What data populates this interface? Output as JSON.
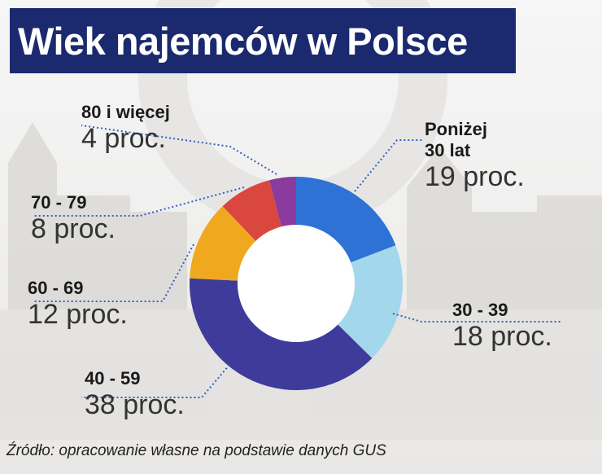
{
  "title": "Wiek najemców w Polsce",
  "source": "Źródło: opracowanie własne na podstawie danych GUS",
  "chart_data": {
    "type": "pie",
    "title": "Wiek najemców w Polsce",
    "donut": true,
    "categories": [
      "Poniżej 30 lat",
      "30 - 39",
      "40 - 59",
      "60 - 69",
      "70 - 79",
      "80 i więcej"
    ],
    "values": [
      19,
      18,
      38,
      12,
      8,
      4
    ],
    "value_labels": [
      "19 proc.",
      "18 proc.",
      "38 proc.",
      "12 proc.",
      "8 proc.",
      "4 proc."
    ],
    "colors": [
      "#2f72d6",
      "#a3d7ec",
      "#3f3b9b",
      "#f0a81e",
      "#d9473f",
      "#8b3a9e"
    ]
  },
  "labels": {
    "under30_line1": "Poniżej",
    "under30_line2": "30 lat"
  }
}
